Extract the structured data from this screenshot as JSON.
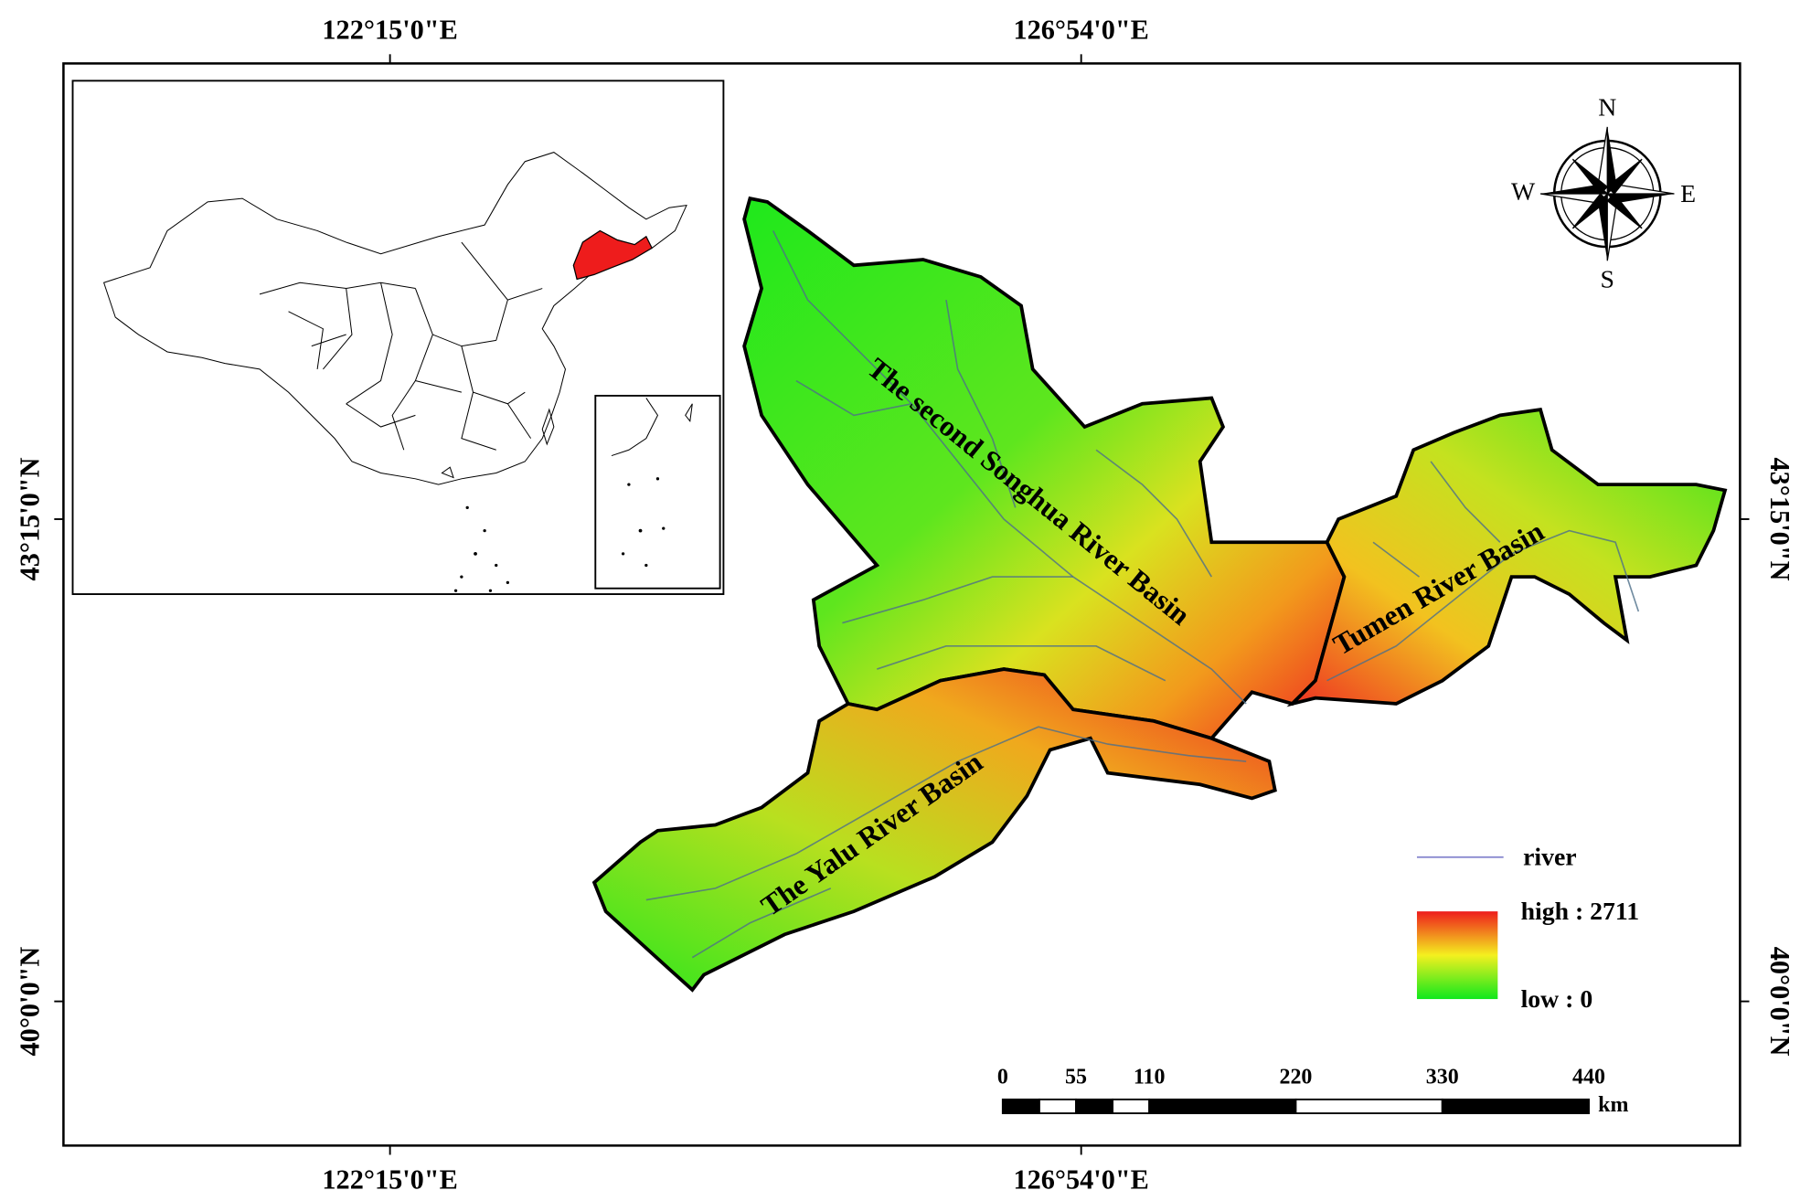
{
  "map": {
    "graticule": {
      "top": [
        "122°15'0\"E",
        "126°54'0\"E"
      ],
      "bottom": [
        "122°15'0\"E",
        "126°54'0\"E"
      ],
      "left": [
        "43°15'0\"N",
        "40°0'0\"N"
      ],
      "right": [
        "43°15'0\"N",
        "40°0'0\"N"
      ]
    },
    "compass": {
      "n": "N",
      "s": "S",
      "e": "E",
      "w": "W"
    },
    "basins": [
      "The second Songhua River Basin",
      "The Yalu River Basin",
      "Tumen River Basin"
    ],
    "legend": {
      "river": "river",
      "high": "high : 2711",
      "low": "low : 0"
    },
    "scale_bar": {
      "ticks": [
        0,
        55,
        110,
        220,
        330,
        440
      ],
      "unit": "km"
    }
  }
}
